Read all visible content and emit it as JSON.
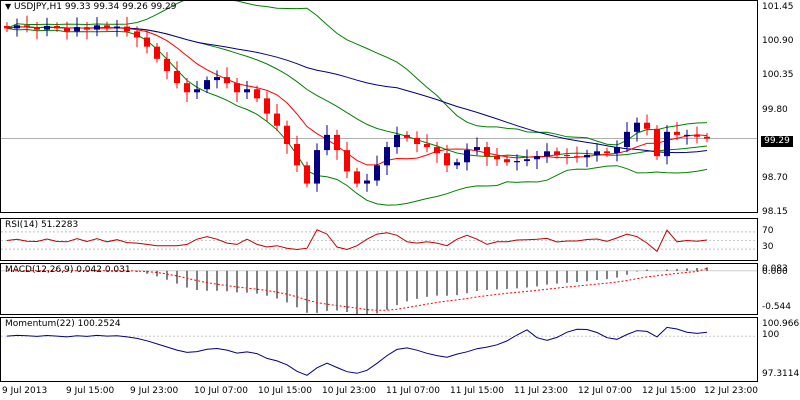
{
  "main": {
    "title": "USDJPY,H1  99.33 99.34 99.26 99.29",
    "price_labels": [
      "101.45",
      "100.90",
      "100.35",
      "99.80",
      "98.70",
      "98.15"
    ],
    "last_price": "99.29"
  },
  "rsi": {
    "title": "RSI(14) 51.2283",
    "levels": [
      "70",
      "30"
    ]
  },
  "macd": {
    "title": "MACD(12,26,9) 0.042 0.031",
    "labels": [
      "0.083",
      "0.000",
      "-0.544"
    ]
  },
  "momentum": {
    "title": "Momentum(22) 100.2524",
    "labels": [
      "100.9665",
      "100",
      "97.3114"
    ]
  },
  "time_labels": [
    "9 Jul 2013",
    "9 Jul 15:00",
    "9 Jul 23:00",
    "10 Jul 07:00",
    "10 Jul 15:00",
    "10 Jul 23:00",
    "11 Jul 07:00",
    "11 Jul 15:00",
    "11 Jul 23:00",
    "12 Jul 07:00",
    "12 Jul 15:00",
    "12 Jul 23:00"
  ],
  "colors": {
    "bull": "#000080",
    "bear": "#ff0000",
    "ma_slow": "#000080",
    "ma_fast": "#ff0000",
    "bands": "#008000",
    "rsi": "#c00000",
    "macd_hist": "#000000",
    "macd_signal": "#ff0000",
    "momentum": "#000080"
  },
  "chart_data": {
    "type": "candlestick",
    "symbol": "USDJPY",
    "timeframe": "H1",
    "ohlc_current": {
      "open": 99.33,
      "high": 99.34,
      "low": 99.26,
      "close": 99.29
    },
    "ylim": [
      98.05,
      101.55
    ],
    "closes": [
      101.1,
      101.15,
      101.12,
      101.08,
      101.14,
      101.1,
      101.05,
      101.12,
      101.08,
      101.15,
      101.1,
      101.13,
      101.05,
      100.95,
      100.8,
      100.6,
      100.4,
      100.2,
      100.05,
      100.1,
      100.25,
      100.3,
      100.2,
      100.05,
      100.1,
      99.95,
      99.7,
      99.5,
      99.2,
      98.85,
      98.55,
      99.1,
      99.35,
      99.1,
      98.75,
      98.55,
      98.6,
      98.85,
      99.15,
      99.35,
      99.3,
      99.2,
      99.15,
      99.05,
      98.85,
      98.9,
      99.1,
      99.15,
      99.0,
      98.95,
      98.9,
      98.92,
      98.95,
      99.0,
      99.08,
      99.02,
      99.0,
      98.98,
      99.02,
      99.08,
      99.05,
      99.15,
      99.4,
      99.55,
      99.45,
      99.0,
      99.4,
      99.35,
      99.35,
      99.32,
      99.29
    ],
    "indicators": {
      "rsi_14": 51.2283,
      "macd": {
        "main": 0.042,
        "signal": 0.031
      },
      "momentum_22": 100.2524
    }
  }
}
